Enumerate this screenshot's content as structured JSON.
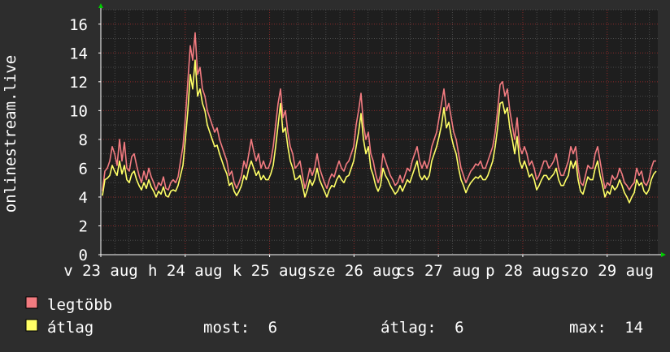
{
  "chart_data": {
    "type": "line",
    "title": "",
    "ylabel": "onlinestream.live",
    "xlabel": "",
    "ylim": [
      0,
      17
    ],
    "yticks": [
      0,
      2,
      4,
      6,
      8,
      10,
      12,
      14,
      16
    ],
    "xlim": [
      0,
      6.6
    ],
    "x_ticks": [
      {
        "label": "v 23 aug",
        "x": 0.0
      },
      {
        "label": "h 24 aug",
        "x": 1.0
      },
      {
        "label": "k 25 aug",
        "x": 2.0
      },
      {
        "label": "sze 26 aug",
        "x": 3.0
      },
      {
        "label": "cs 27 aug",
        "x": 4.0
      },
      {
        "label": "p 28 aug",
        "x": 5.0
      },
      {
        "label": "szo 29 aug",
        "x": 6.0
      }
    ],
    "grid": true,
    "colors": {
      "background": "#2d2d2d",
      "plot_background": "#1e1e1e",
      "grid_minor": "#4a4a4a",
      "grid_major": "#8a2a2a",
      "axis": "#ffffff",
      "arrow": "#00cc00",
      "series_max": "#f27b80",
      "series_avg": "#ffff66"
    },
    "series": [
      {
        "name": "legtöbb",
        "color": "#f27b80",
        "values": [
          4.4,
          5.8,
          6.0,
          6.5,
          7.5,
          7.0,
          6.2,
          8.0,
          6.5,
          7.8,
          6.0,
          5.8,
          6.8,
          7.0,
          6.2,
          5.5,
          5.0,
          5.8,
          5.2,
          6.0,
          5.4,
          5.0,
          4.5,
          5.0,
          4.8,
          5.4,
          4.6,
          4.5,
          5.0,
          5.2,
          5.0,
          5.4,
          6.5,
          7.5,
          9.5,
          12.0,
          14.5,
          13.5,
          15.4,
          12.5,
          13.0,
          11.5,
          11.0,
          10.0,
          9.5,
          9.0,
          8.5,
          8.8,
          8.0,
          7.5,
          7.0,
          6.5,
          5.5,
          5.8,
          5.0,
          4.6,
          5.0,
          5.5,
          6.5,
          6.0,
          7.0,
          8.0,
          7.2,
          6.5,
          7.0,
          6.0,
          6.5,
          6.0,
          6.0,
          6.5,
          7.5,
          9.0,
          10.5,
          11.5,
          9.5,
          10.0,
          8.5,
          7.5,
          7.0,
          6.0,
          6.2,
          6.5,
          5.5,
          4.6,
          5.2,
          6.0,
          5.5,
          6.0,
          7.0,
          6.0,
          5.5,
          5.0,
          4.6,
          5.2,
          5.6,
          5.4,
          6.0,
          6.5,
          6.0,
          5.8,
          6.3,
          6.5,
          7.0,
          7.5,
          9.0,
          10.0,
          11.2,
          9.0,
          8.0,
          8.5,
          7.0,
          6.5,
          5.6,
          5.0,
          5.5,
          7.0,
          6.5,
          6.0,
          5.5,
          5.2,
          4.8,
          5.0,
          5.5,
          5.0,
          5.5,
          6.0,
          5.8,
          6.5,
          7.0,
          7.5,
          6.5,
          6.0,
          6.5,
          6.0,
          6.5,
          7.5,
          8.0,
          8.5,
          9.5,
          10.5,
          11.5,
          10.0,
          10.5,
          9.5,
          8.5,
          8.0,
          7.0,
          6.0,
          5.5,
          5.0,
          5.4,
          5.8,
          6.0,
          6.3,
          6.2,
          6.5,
          6.0,
          6.0,
          6.5,
          7.0,
          7.5,
          8.5,
          10.0,
          11.8,
          12.0,
          11.0,
          11.5,
          10.0,
          9.0,
          8.0,
          9.5,
          7.5,
          7.0,
          7.5,
          7.0,
          6.2,
          6.5,
          6.0,
          5.2,
          5.5,
          6.0,
          6.5,
          6.5,
          6.0,
          6.2,
          6.5,
          7.0,
          6.0,
          5.5,
          5.5,
          6.0,
          6.5,
          7.5,
          7.0,
          7.5,
          6.0,
          5.0,
          4.8,
          5.5,
          6.2,
          6.0,
          6.0,
          7.0,
          7.5,
          6.5,
          5.5,
          4.6,
          5.0,
          4.8,
          5.5,
          5.2,
          5.4,
          6.0,
          5.6,
          5.0,
          4.8,
          4.5,
          4.8,
          5.0,
          6.0,
          5.5,
          5.8,
          5.0,
          4.8,
          5.2,
          6.0,
          6.5,
          6.5
        ]
      },
      {
        "name": "átlag",
        "color": "#ffff66",
        "values": [
          4.1,
          5.2,
          5.3,
          5.5,
          6.2,
          5.8,
          5.5,
          6.5,
          5.6,
          6.2,
          5.2,
          5.0,
          5.6,
          5.8,
          5.2,
          4.8,
          4.5,
          5.0,
          4.6,
          5.2,
          4.7,
          4.4,
          4.0,
          4.4,
          4.2,
          4.7,
          4.1,
          4.0,
          4.4,
          4.5,
          4.4,
          4.8,
          5.5,
          6.2,
          8.0,
          10.0,
          12.5,
          11.5,
          13.5,
          11.0,
          11.5,
          10.5,
          10.0,
          9.0,
          8.5,
          8.0,
          7.5,
          7.6,
          7.0,
          6.5,
          6.0,
          5.6,
          4.8,
          5.0,
          4.4,
          4.1,
          4.4,
          4.8,
          5.5,
          5.2,
          6.0,
          6.5,
          6.0,
          5.5,
          5.8,
          5.2,
          5.5,
          5.2,
          5.2,
          5.6,
          6.2,
          7.5,
          9.0,
          10.5,
          8.5,
          8.8,
          7.5,
          6.5,
          6.0,
          5.2,
          5.3,
          5.5,
          4.8,
          4.0,
          4.5,
          5.2,
          4.8,
          5.2,
          6.0,
          5.2,
          4.8,
          4.4,
          4.0,
          4.5,
          4.8,
          4.7,
          5.2,
          5.5,
          5.2,
          5.0,
          5.4,
          5.5,
          6.0,
          6.5,
          7.5,
          8.5,
          9.8,
          8.0,
          7.0,
          7.5,
          6.0,
          5.5,
          4.8,
          4.4,
          4.8,
          6.0,
          5.5,
          5.2,
          4.8,
          4.5,
          4.2,
          4.4,
          4.8,
          4.4,
          4.8,
          5.2,
          5.0,
          5.5,
          6.0,
          6.5,
          5.5,
          5.2,
          5.5,
          5.2,
          5.5,
          6.5,
          7.0,
          7.5,
          8.2,
          9.0,
          10.2,
          8.8,
          9.2,
          8.2,
          7.5,
          7.0,
          6.0,
          5.2,
          4.8,
          4.3,
          4.7,
          5.0,
          5.2,
          5.4,
          5.3,
          5.5,
          5.2,
          5.2,
          5.5,
          6.0,
          6.5,
          7.5,
          8.8,
          10.5,
          10.6,
          9.8,
          10.2,
          8.8,
          8.0,
          7.0,
          8.2,
          6.5,
          6.0,
          6.5,
          6.0,
          5.4,
          5.6,
          5.2,
          4.5,
          4.8,
          5.2,
          5.5,
          5.5,
          5.2,
          5.4,
          5.6,
          6.0,
          5.2,
          4.8,
          4.8,
          5.2,
          5.5,
          6.5,
          6.0,
          6.5,
          5.2,
          4.4,
          4.2,
          4.8,
          5.4,
          5.2,
          5.2,
          6.0,
          6.5,
          5.5,
          4.8,
          4.0,
          4.4,
          4.2,
          4.8,
          4.5,
          4.7,
          5.2,
          4.8,
          4.3,
          4.0,
          3.6,
          4.0,
          4.3,
          5.2,
          4.8,
          5.0,
          4.4,
          4.2,
          4.5,
          5.2,
          5.6,
          5.8
        ]
      }
    ],
    "legend_placement": "bottom-left",
    "legend": [
      {
        "key": "max",
        "label": "legtöbb",
        "color": "#f27b80"
      },
      {
        "key": "avg",
        "label": "átlag",
        "color": "#ffff66"
      }
    ],
    "stats": [
      {
        "label": "most:",
        "value": "6"
      },
      {
        "label": "átlag:",
        "value": "6"
      },
      {
        "label": "max:",
        "value": "14"
      }
    ]
  }
}
